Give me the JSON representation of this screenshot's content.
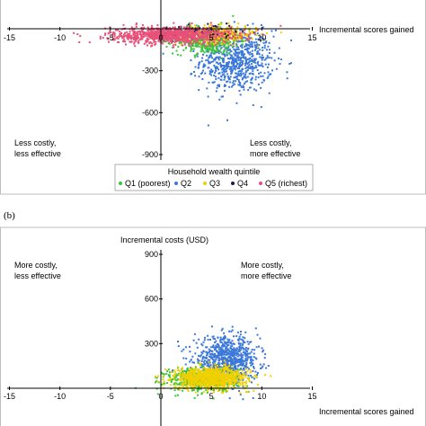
{
  "chart_data": [
    {
      "type": "scatter",
      "panel_label": "",
      "xlabel": "Incremental scores gained",
      "ylabel": "",
      "xlim": [
        -15,
        15
      ],
      "ylim": [
        -900,
        0
      ],
      "x_ticks": [
        "-15",
        "-10",
        "-5",
        "0",
        "5",
        "10",
        "15"
      ],
      "y_ticks": [
        "-300",
        "-600",
        "-900"
      ],
      "quadrant_labels": {
        "lower_left": [
          "Less costly,",
          "less effective"
        ],
        "lower_right": [
          "Less costly,",
          "more effective"
        ]
      },
      "legend": {
        "title": "Household wealth quintile",
        "placement": "bottom",
        "entries": [
          {
            "name": "Q1 (poorest)",
            "color": "#3cc43c"
          },
          {
            "name": "Q2",
            "color": "#3c78d8"
          },
          {
            "name": "Q3",
            "color": "#f0d000"
          },
          {
            "name": "Q4",
            "color": "#1a1a4a"
          },
          {
            "name": "Q5 (richest)",
            "color": "#e8507a"
          }
        ]
      },
      "series": [
        {
          "name": "Q2",
          "color": "#3c78d8",
          "cx": 7.5,
          "sx": 1.8,
          "cy": -230,
          "sy": 110,
          "n": 700
        },
        {
          "name": "Q1 (poorest)",
          "color": "#3cc43c",
          "cx": 4.5,
          "sx": 1.6,
          "cy": -80,
          "sy": 50,
          "n": 450
        },
        {
          "name": "Q3",
          "color": "#f0d000",
          "cx": 5.5,
          "sx": 2.0,
          "cy": -40,
          "sy": 30,
          "n": 350
        },
        {
          "name": "Q4",
          "color": "#1a1a4a",
          "cx": 3.5,
          "sx": 2.0,
          "cy": -25,
          "sy": 25,
          "n": 120
        },
        {
          "name": "Q5 (richest)",
          "color": "#e8507a",
          "cx": 1.0,
          "sx": 3.0,
          "cy": -45,
          "sy": 30,
          "n": 900
        }
      ]
    },
    {
      "type": "scatter",
      "panel_label": "(b)",
      "xlabel": "Incremental scores gained",
      "ylabel": "Incremental costs (USD)",
      "xlim": [
        -15,
        15
      ],
      "ylim": [
        -100,
        900
      ],
      "x_ticks": [
        "-15",
        "-10",
        "-5",
        "0",
        "5",
        "10",
        "15"
      ],
      "y_ticks": [
        "900",
        "600",
        "300"
      ],
      "quadrant_labels": {
        "upper_left": [
          "More costly,",
          "less effective"
        ],
        "upper_right": [
          "More costly,",
          "more effective"
        ]
      },
      "series": [
        {
          "name": "Q2",
          "color": "#3c78d8",
          "cx": 6.5,
          "sx": 1.6,
          "cy": 190,
          "sy": 75,
          "n": 800
        },
        {
          "name": "Q1 (poorest)",
          "color": "#3cc43c",
          "cx": 4.0,
          "sx": 1.8,
          "cy": 60,
          "sy": 40,
          "n": 450
        },
        {
          "name": "Q3",
          "color": "#f0d000",
          "cx": 5.0,
          "sx": 1.8,
          "cy": 70,
          "sy": 35,
          "n": 900
        }
      ]
    }
  ]
}
